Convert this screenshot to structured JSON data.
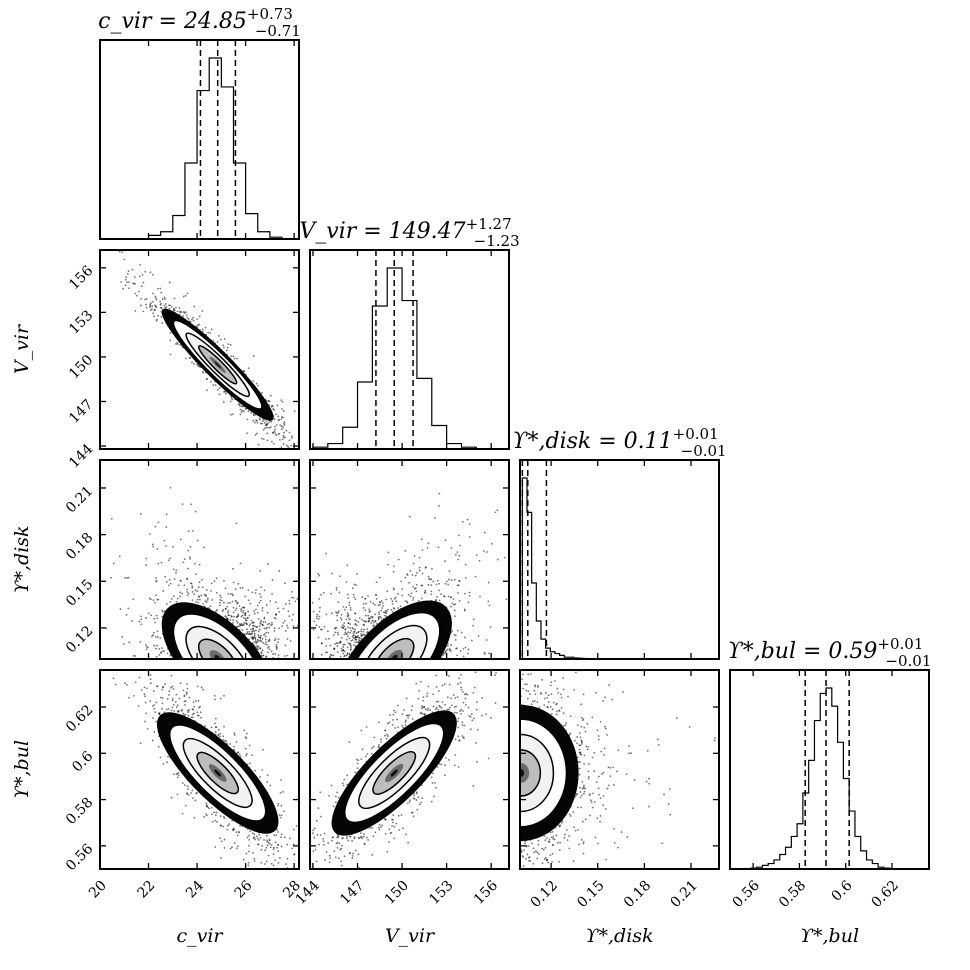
{
  "chart_data": {
    "type": "corner",
    "params": [
      {
        "name": "c_vir",
        "axis_label": "c_vir",
        "range": [
          20,
          28.2
        ],
        "ticks": [
          20,
          22,
          24,
          26,
          28
        ],
        "title": {
          "lhs": "c_vir",
          "value": "24.85",
          "plus": "+0.73",
          "minus": "−0.71"
        },
        "median": 24.85,
        "q16": 24.14,
        "q84": 25.58,
        "sigma": 0.72
      },
      {
        "name": "V_vir",
        "axis_label": "V_vir",
        "range": [
          143.8,
          157.2
        ],
        "ticks": [
          144,
          147,
          150,
          153,
          156
        ],
        "title": {
          "lhs": "V_vir",
          "value": "149.47",
          "plus": "+1.27",
          "minus": "−1.23"
        },
        "median": 149.47,
        "q16": 148.24,
        "q84": 150.74,
        "sigma": 1.25
      },
      {
        "name": "Upsilon_disk",
        "axis_label": "ϒ*,disk",
        "range": [
          0.1,
          0.228
        ],
        "ticks": [
          0.12,
          0.15,
          0.18,
          0.21
        ],
        "title": {
          "lhs": "ϒ*,disk",
          "value": "0.11",
          "plus": "+0.01",
          "minus": "−0.01"
        },
        "median": 0.105,
        "q16": 0.1015,
        "q84": 0.117,
        "sigma": 0.008
      },
      {
        "name": "Upsilon_bul",
        "axis_label": "ϒ*,bul",
        "range": [
          0.55,
          0.636
        ],
        "ticks": [
          0.56,
          0.58,
          0.6,
          0.62
        ],
        "title": {
          "lhs": "ϒ*,bul",
          "value": "0.59",
          "plus": "+0.01",
          "minus": "−0.01"
        },
        "median": 0.5915,
        "q16": 0.5825,
        "q84": 0.6015,
        "sigma": 0.0095
      }
    ],
    "histograms": [
      {
        "param": "c_vir",
        "bins": [
          20.0,
          20.5,
          21.0,
          21.5,
          22.0,
          22.5,
          23.0,
          23.5,
          24.0,
          24.5,
          25.0,
          25.5,
          26.0,
          26.5,
          27.0,
          27.5,
          28.0
        ],
        "counts": [
          0,
          0,
          0,
          0,
          2,
          4,
          13,
          42,
          82,
          100,
          84,
          42,
          14,
          4,
          1,
          0
        ]
      },
      {
        "param": "V_vir",
        "bins": [
          144,
          145,
          146,
          147,
          148,
          149,
          150,
          151,
          152,
          153,
          154,
          155,
          156,
          157
        ],
        "counts": [
          1,
          3,
          12,
          37,
          79,
          100,
          82,
          39,
          13,
          3,
          1,
          0,
          0
        ]
      },
      {
        "param": "Upsilon_disk",
        "bins": [
          0.1015,
          0.1045,
          0.1075,
          0.1105,
          0.1135,
          0.1165,
          0.1195,
          0.1225,
          0.1255,
          0.1285,
          0.1315,
          0.1345,
          0.1375,
          0.1405,
          0.1435,
          0.1465,
          0.1495,
          0.1525
        ],
        "counts": [
          100,
          81,
          42,
          21,
          11,
          6,
          4,
          3,
          2,
          1,
          1,
          0.6,
          0.4,
          0.3,
          0.2,
          0.1,
          0.1
        ]
      },
      {
        "param": "Upsilon_bul",
        "bins": [
          0.554,
          0.5565,
          0.559,
          0.5615,
          0.564,
          0.5665,
          0.569,
          0.5715,
          0.574,
          0.5765,
          0.579,
          0.5815,
          0.584,
          0.5865,
          0.589,
          0.5915,
          0.594,
          0.5965,
          0.599,
          0.6015,
          0.604,
          0.6065,
          0.609,
          0.6115,
          0.614,
          0.6165,
          0.619,
          0.6215
        ],
        "counts": [
          0,
          0,
          0.5,
          1,
          2,
          3,
          5,
          8,
          12,
          18,
          25,
          42,
          60,
          82,
          97,
          100,
          90,
          70,
          50,
          32,
          18,
          10,
          5,
          3,
          1,
          0.5,
          0
        ]
      }
    ],
    "pairs": [
      {
        "x": "c_vir",
        "y": "V_vir",
        "rho": -0.95
      },
      {
        "x": "c_vir",
        "y": "Upsilon_disk",
        "rho": -0.6
      },
      {
        "x": "V_vir",
        "y": "Upsilon_disk",
        "rho": 0.6
      },
      {
        "x": "c_vir",
        "y": "Upsilon_bul",
        "rho": -0.8
      },
      {
        "x": "V_vir",
        "y": "Upsilon_bul",
        "rho": 0.8
      },
      {
        "x": "Upsilon_disk",
        "y": "Upsilon_bul",
        "rho": 0.0
      }
    ],
    "colors": {
      "ink": "#000000",
      "background": "#ffffff"
    },
    "grid": false,
    "legend": "none"
  }
}
